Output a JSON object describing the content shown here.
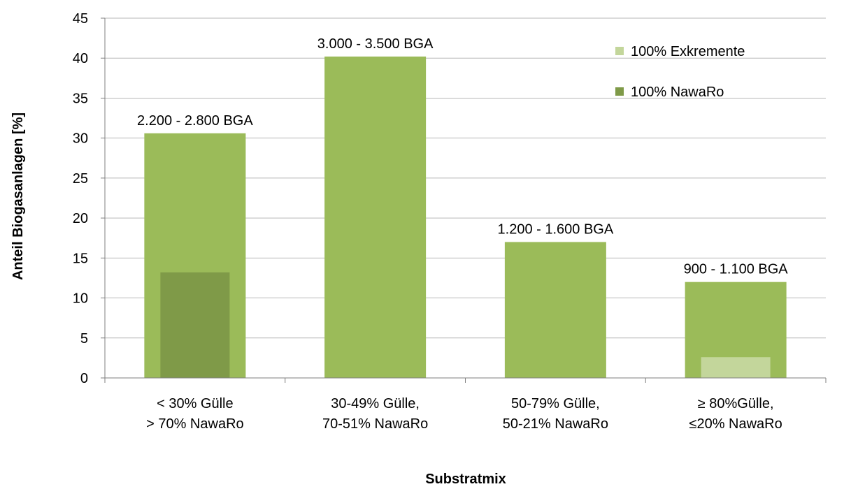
{
  "chart_data": {
    "type": "bar",
    "categories": [
      [
        "< 30% Gülle",
        "> 70% NawaRo"
      ],
      [
        "30-49% Gülle,",
        "70-51% NawaRo"
      ],
      [
        "50-79% Gülle,",
        "50-21% NawaRo"
      ],
      [
        "≥ 80%Gülle,",
        "≤20% NawaRo"
      ]
    ],
    "series": [
      {
        "values": [
          30.6,
          40.2,
          17.0,
          12.0
        ],
        "color": "#9bbb59",
        "data_labels": [
          "2.200 - 2.800 BGA",
          "3.000 - 3.500 BGA",
          "1.200 - 1.600 BGA",
          "900 - 1.100 BGA"
        ]
      },
      {
        "name": "100% NawaRo",
        "values": [
          13.2,
          null,
          null,
          null
        ],
        "color": "#7f9a48"
      },
      {
        "name": "100% Exkremente",
        "values": [
          null,
          null,
          null,
          2.6
        ],
        "color": "#c3d69b"
      }
    ],
    "xlabel": "Substratmix",
    "ylabel": "Anteil Biogasanlagen [%]",
    "ylim": [
      0,
      45
    ],
    "yticks": [
      0,
      5,
      10,
      15,
      20,
      25,
      30,
      35,
      40,
      45
    ],
    "grid": true,
    "legend_position": "top-right",
    "legend": [
      {
        "label": "100% Exkremente",
        "color": "#c3d69b"
      },
      {
        "label": "100% NawaRo",
        "color": "#7f9a48"
      }
    ]
  }
}
